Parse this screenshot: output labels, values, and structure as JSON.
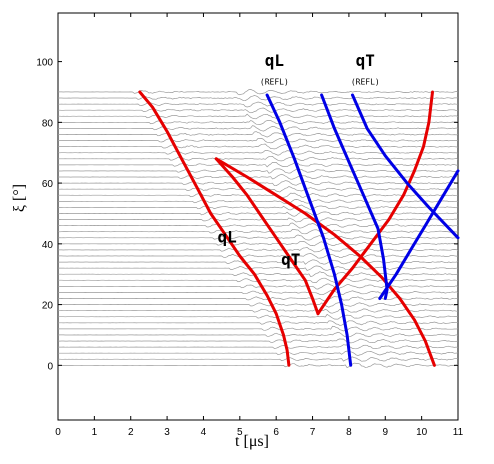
{
  "chart_data": {
    "type": "line",
    "xlabel": "t [μs]",
    "ylabel": "ξ [°]",
    "xlim": [
      0,
      11
    ],
    "ylim": [
      -18,
      116
    ],
    "x_ticks": [
      "0",
      "1",
      "2",
      "3",
      "4",
      "5",
      "6",
      "7",
      "8",
      "9",
      "10",
      "11"
    ],
    "y_ticks": [
      "0",
      "20",
      "40",
      "60",
      "80",
      "100"
    ],
    "grid": false,
    "waveform_traces": {
      "angle_start": 0,
      "angle_end": 90,
      "angle_step": 2,
      "trace_color": "#9a9a9a"
    },
    "series": [
      {
        "color": "#e60000",
        "points": [
          [
            2.25,
            90
          ],
          [
            2.6,
            85
          ],
          [
            3.0,
            77
          ],
          [
            3.4,
            68
          ],
          [
            3.8,
            59
          ],
          [
            4.2,
            50
          ],
          [
            4.6,
            43
          ],
          [
            5.0,
            36
          ],
          [
            5.4,
            30
          ],
          [
            5.75,
            23
          ],
          [
            6.0,
            17
          ],
          [
            6.2,
            10
          ],
          [
            6.3,
            5
          ],
          [
            6.35,
            0
          ]
        ]
      },
      {
        "color": "#e60000",
        "points": [
          [
            4.35,
            68
          ],
          [
            4.8,
            62
          ],
          [
            5.2,
            56
          ],
          [
            5.6,
            49
          ],
          [
            6.0,
            42
          ],
          [
            6.4,
            35
          ],
          [
            6.8,
            28
          ],
          [
            7.0,
            22
          ],
          [
            7.15,
            17
          ]
        ]
      },
      {
        "color": "#e60000",
        "points": [
          [
            4.35,
            68
          ],
          [
            5.2,
            62
          ],
          [
            6.0,
            56
          ],
          [
            6.8,
            50
          ],
          [
            7.6,
            43
          ],
          [
            8.3,
            36
          ],
          [
            8.9,
            29
          ],
          [
            9.4,
            22
          ],
          [
            9.8,
            15
          ],
          [
            10.1,
            8
          ],
          [
            10.35,
            0
          ]
        ]
      },
      {
        "color": "#e60000",
        "points": [
          [
            7.15,
            17
          ],
          [
            7.6,
            25
          ],
          [
            8.1,
            32
          ],
          [
            8.6,
            40
          ],
          [
            9.1,
            48
          ],
          [
            9.5,
            56
          ],
          [
            9.8,
            64
          ],
          [
            10.05,
            72
          ],
          [
            10.2,
            80
          ],
          [
            10.3,
            90
          ]
        ]
      },
      {
        "color": "#0000e6",
        "points": [
          [
            5.75,
            89
          ],
          [
            6.1,
            80
          ],
          [
            6.5,
            68
          ],
          [
            6.9,
            55
          ],
          [
            7.3,
            42
          ],
          [
            7.6,
            30
          ],
          [
            7.8,
            20
          ],
          [
            7.95,
            10
          ],
          [
            8.05,
            0
          ]
        ]
      },
      {
        "color": "#0000e6",
        "points": [
          [
            7.25,
            89
          ],
          [
            7.6,
            78
          ],
          [
            8.0,
            67
          ],
          [
            8.4,
            56
          ],
          [
            8.8,
            45
          ],
          [
            8.95,
            35
          ],
          [
            9.05,
            25
          ],
          [
            9.0,
            22
          ]
        ]
      },
      {
        "color": "#0000e6",
        "points": [
          [
            8.1,
            89
          ],
          [
            8.5,
            78
          ],
          [
            9.0,
            69
          ],
          [
            9.6,
            60
          ],
          [
            10.2,
            52
          ],
          [
            11.0,
            42
          ]
        ]
      },
      {
        "color": "#0000e6",
        "points": [
          [
            8.85,
            22
          ],
          [
            9.3,
            30
          ],
          [
            9.7,
            38
          ],
          [
            10.1,
            46
          ],
          [
            10.5,
            54
          ],
          [
            11.0,
            64
          ]
        ]
      }
    ],
    "annotations": [
      {
        "text": "qL",
        "x": 5.95,
        "y": 98.5,
        "size": "big"
      },
      {
        "text": "(REFL)",
        "x": 5.95,
        "y": 92.5,
        "size": "small"
      },
      {
        "text": "qT",
        "x": 8.45,
        "y": 98.5,
        "size": "big"
      },
      {
        "text": "(REFL)",
        "x": 8.45,
        "y": 92.5,
        "size": "small"
      },
      {
        "text": "qL",
        "x": 4.65,
        "y": 40.5,
        "size": "big"
      },
      {
        "text": "qT",
        "x": 6.4,
        "y": 33,
        "size": "big"
      }
    ]
  }
}
